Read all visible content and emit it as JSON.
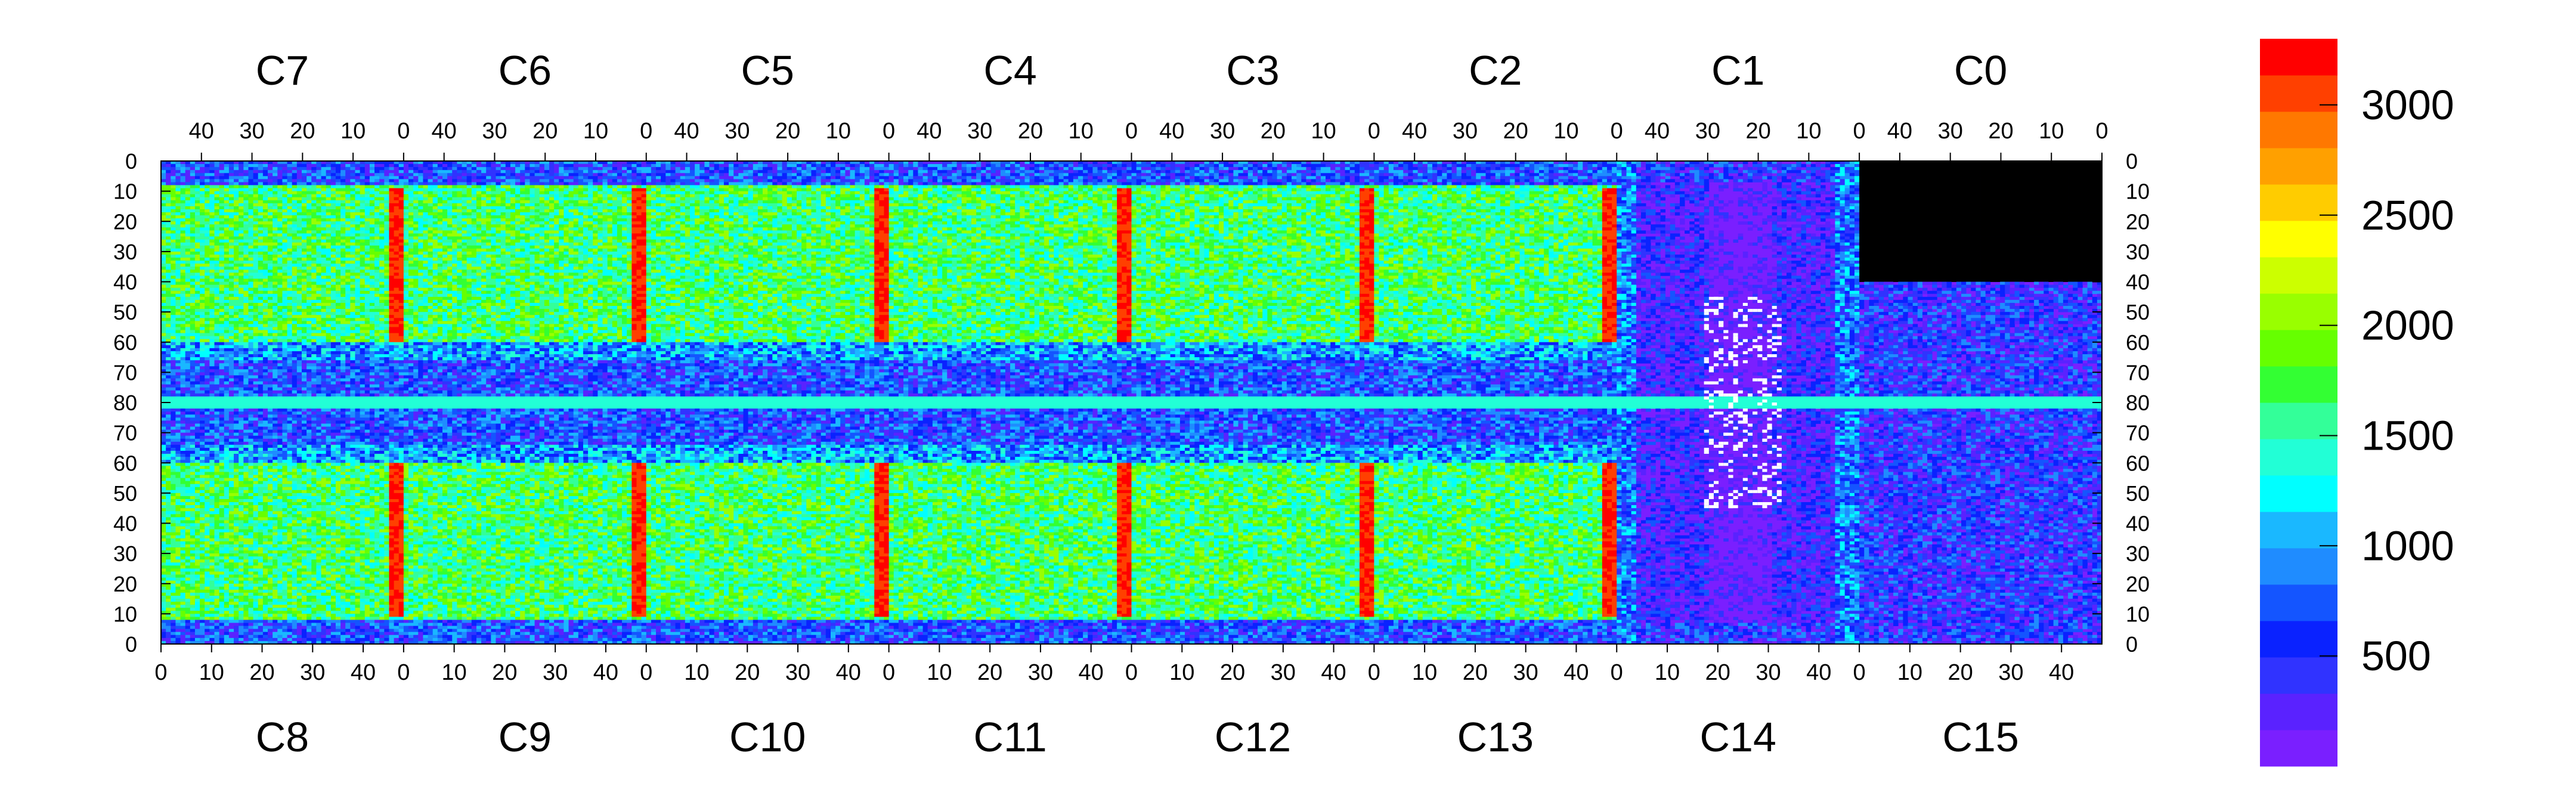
{
  "chart_data": {
    "type": "heatmap",
    "top_sectors": [
      "C7",
      "C6",
      "C5",
      "C4",
      "C3",
      "C2",
      "C1",
      "C0"
    ],
    "bottom_sectors": [
      "C8",
      "C9",
      "C10",
      "C11",
      "C12",
      "C13",
      "C14",
      "C15"
    ],
    "top_tick_labels": [
      "40",
      "30",
      "20",
      "10",
      "0"
    ],
    "bottom_tick_labels": [
      "0",
      "10",
      "20",
      "30",
      "40"
    ],
    "y_tick_labels": [
      "0",
      "10",
      "20",
      "30",
      "40",
      "50",
      "60",
      "70",
      "80",
      "70",
      "60",
      "50",
      "40",
      "30",
      "20",
      "10",
      "0"
    ],
    "x_range_per_sector": [
      0,
      48
    ],
    "y_range": [
      0,
      80
    ],
    "colorbar": {
      "labels": [
        "3000",
        "2500",
        "2000",
        "1500",
        "1000",
        "500"
      ],
      "label_values": [
        3000,
        2500,
        2000,
        1500,
        1000,
        500
      ],
      "range": [
        0,
        3300
      ]
    },
    "colors": {
      "palette": [
        "#7a1fff",
        "#5a22ff",
        "#3033ff",
        "#0a22ff",
        "#1455ff",
        "#1f8cff",
        "#1ab8ff",
        "#00ffff",
        "#22ffd6",
        "#33ff99",
        "#33ff33",
        "#66ff00",
        "#99ff00",
        "#ccff00",
        "#ffff00",
        "#ffcc00",
        "#ffa000",
        "#ff7800",
        "#ff4000",
        "#ff0000"
      ],
      "background": "#7a1fff",
      "dead_cell": "#ffffff"
    },
    "grid": false
  }
}
